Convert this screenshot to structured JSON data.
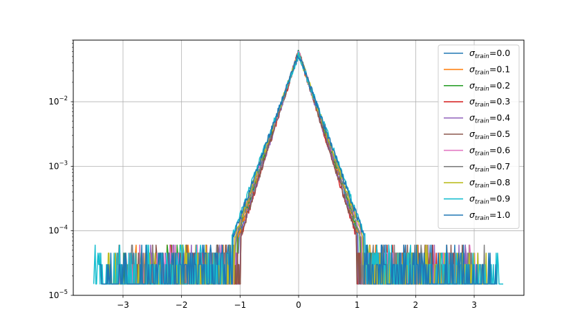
{
  "chart_data": {
    "type": "line",
    "title": "",
    "xlabel": "",
    "ylabel": "",
    "xlim": [
      -3.85,
      3.85
    ],
    "ylim": [
      1e-05,
      0.09
    ],
    "yscale": "log",
    "grid": true,
    "legend_position": "top-right",
    "x_ticks": [
      -3,
      -2,
      -1,
      0,
      1,
      2,
      3
    ],
    "x_tick_labels": [
      "−3",
      "−2",
      "−1",
      "0",
      "1",
      "2",
      "3"
    ],
    "y_ticks": [
      1e-05,
      0.0001,
      0.001,
      0.01
    ],
    "y_tick_labels": [
      {
        "base": "10",
        "exp": "−5"
      },
      {
        "base": "10",
        "exp": "−4"
      },
      {
        "base": "10",
        "exp": "−3"
      },
      {
        "base": "10",
        "exp": "−2"
      }
    ],
    "peak_density": 0.06,
    "series": [
      {
        "name": "σtrain=0.0",
        "symbol": "σ",
        "sub": "train",
        "value": "=0.0",
        "color": "#1f77b4",
        "peak": 0.059,
        "scale": 0.155,
        "tail_range": 2.9
      },
      {
        "name": "σtrain=0.1",
        "symbol": "σ",
        "sub": "train",
        "value": "=0.1",
        "color": "#ff7f0e",
        "peak": 0.058,
        "scale": 0.158,
        "tail_range": 2.8
      },
      {
        "name": "σtrain=0.2",
        "symbol": "σ",
        "sub": "train",
        "value": "=0.2",
        "color": "#2ca02c",
        "peak": 0.058,
        "scale": 0.16,
        "tail_range": 3.0
      },
      {
        "name": "σtrain=0.3",
        "symbol": "σ",
        "sub": "train",
        "value": "=0.3",
        "color": "#d62728",
        "peak": 0.06,
        "scale": 0.15,
        "tail_range": 2.7
      },
      {
        "name": "σtrain=0.4",
        "symbol": "σ",
        "sub": "train",
        "value": "=0.4",
        "color": "#9467bd",
        "peak": 0.059,
        "scale": 0.152,
        "tail_range": 2.9
      },
      {
        "name": "σtrain=0.5",
        "symbol": "σ",
        "sub": "train",
        "value": "=0.5",
        "color": "#8c564b",
        "peak": 0.061,
        "scale": 0.15,
        "tail_range": 3.0
      },
      {
        "name": "σtrain=0.6",
        "symbol": "σ",
        "sub": "train",
        "value": "=0.6",
        "color": "#e377c2",
        "peak": 0.057,
        "scale": 0.165,
        "tail_range": 3.1
      },
      {
        "name": "σtrain=0.7",
        "symbol": "σ",
        "sub": "train",
        "value": "=0.7",
        "color": "#7f7f7f",
        "peak": 0.058,
        "scale": 0.162,
        "tail_range": 3.2
      },
      {
        "name": "σtrain=0.8",
        "symbol": "σ",
        "sub": "train",
        "value": "=0.8",
        "color": "#bcbd22",
        "peak": 0.056,
        "scale": 0.168,
        "tail_range": 3.3
      },
      {
        "name": "σtrain=0.9",
        "symbol": "σ",
        "sub": "train",
        "value": "=0.9",
        "color": "#17becf",
        "peak": 0.054,
        "scale": 0.175,
        "tail_range": 3.5
      },
      {
        "name": "σtrain=1.0",
        "symbol": "σ",
        "sub": "train",
        "value": "=1.0",
        "color": "#1f77b4",
        "peak": 0.055,
        "scale": 0.172,
        "tail_range": 3.4
      }
    ]
  }
}
